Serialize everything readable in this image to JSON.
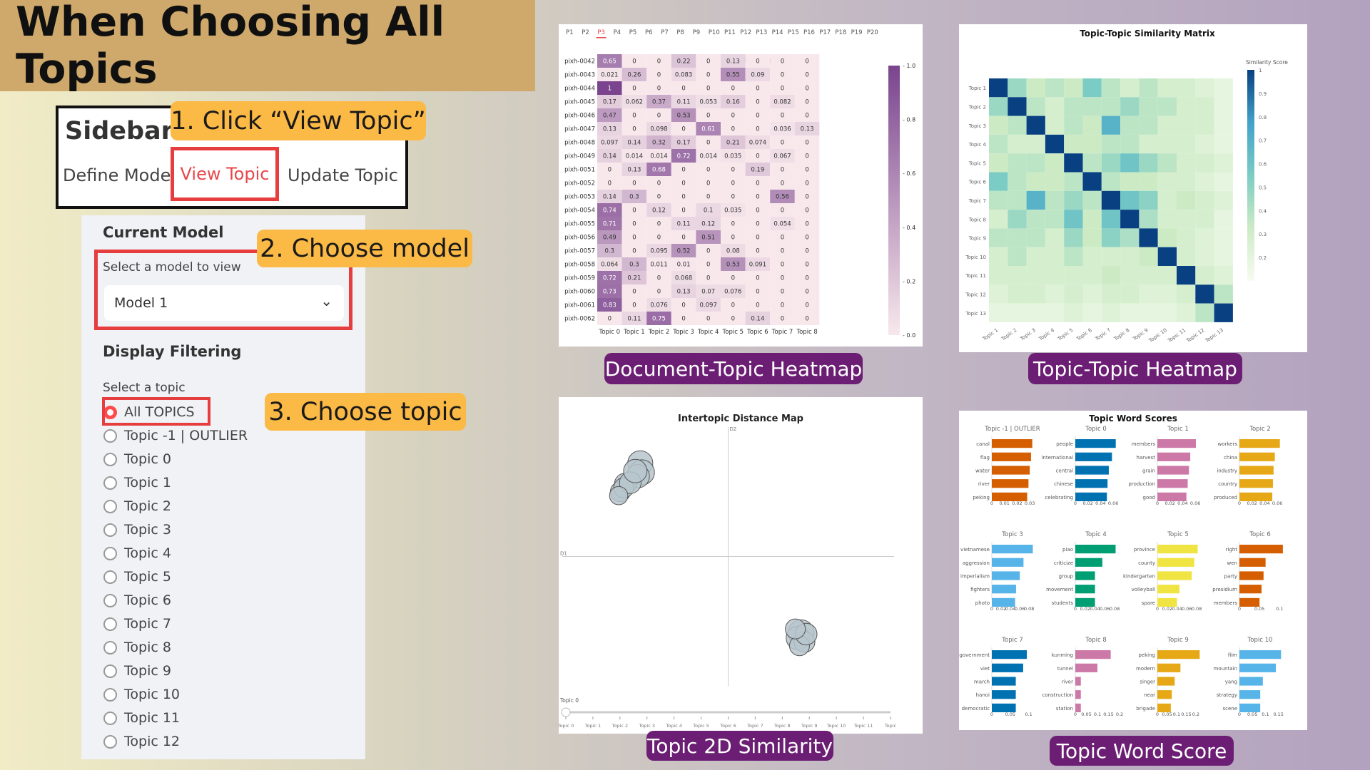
{
  "title": "When Choosing All Topics",
  "sidebar": {
    "heading": "Sidebar",
    "tabs": [
      "Define Model",
      "View Topic",
      "Update Topic"
    ]
  },
  "callouts": [
    "1. Click “View Topic”",
    "2. Choose model",
    "3. Choose topic"
  ],
  "panel": {
    "current_model_heading": "Current Model",
    "select_model_label": "Select a model to view",
    "selected_model": "Model 1",
    "display_filtering_heading": "Display Filtering",
    "select_topic_label": "Select a topic",
    "topic_options": [
      "All TOPICS",
      "Topic -1 | OUTLIER",
      "Topic 0",
      "Topic 1",
      "Topic 2",
      "Topic 3",
      "Topic 4",
      "Topic 5",
      "Topic 6",
      "Topic 7",
      "Topic 8",
      "Topic 9",
      "Topic 10",
      "Topic 11",
      "Topic 12"
    ],
    "selected_topic_index": 0
  },
  "colors": {
    "banner": "#cfa96b",
    "callout": "#fbb945",
    "caption": "#6b1e73",
    "highlight": "#e63e3e"
  },
  "captions": [
    "Document-Topic Heatmap",
    "Topic-Topic Heatmap",
    "Topic 2D Similarity",
    "Topic Word Score"
  ],
  "chart_data": [
    {
      "type": "heatmap",
      "title": "Document-Topic Heatmap All",
      "page_tabs": [
        "P1",
        "P2",
        "P3",
        "P4",
        "P5",
        "P6",
        "P7",
        "P8",
        "P9",
        "P10",
        "P11",
        "P12",
        "P13",
        "P14",
        "P15",
        "P16",
        "P17",
        "P18",
        "P19",
        "P20"
      ],
      "active_page": "P3",
      "rows": [
        "pixh-0042",
        "pixh-0043",
        "pixh-0044",
        "pixh-0045",
        "pixh-0046",
        "pixh-0047",
        "pixh-0048",
        "pixh-0049",
        "pixh-0051",
        "pixh-0052",
        "pixh-0053",
        "pixh-0054",
        "pixh-0055",
        "pixh-0056",
        "pixh-0057",
        "pixh-0058",
        "pixh-0059",
        "pixh-0060",
        "pixh-0061",
        "pixh-0062"
      ],
      "columns": [
        "Topic 0",
        "Topic 1",
        "Topic 2",
        "Topic 3",
        "Topic 4",
        "Topic 5",
        "Topic 6",
        "Topic 7",
        "Topic 8"
      ],
      "values": [
        [
          0.65,
          0,
          0,
          0.22,
          0,
          0.13,
          0,
          0,
          0
        ],
        [
          0.021,
          0.26,
          0,
          0.083,
          0,
          0.55,
          0.09,
          0,
          0
        ],
        [
          1,
          0,
          0,
          0,
          0,
          0,
          0,
          0,
          0
        ],
        [
          0.17,
          0.062,
          0.37,
          0.11,
          0.053,
          0.16,
          0,
          0.082,
          0
        ],
        [
          0.47,
          0,
          0,
          0.53,
          0,
          0,
          0,
          0,
          0
        ],
        [
          0.13,
          0,
          0.098,
          0,
          0.61,
          0,
          0,
          0.036,
          0.13
        ],
        [
          0.097,
          0.14,
          0.32,
          0.17,
          0,
          0.21,
          0.074,
          0,
          0
        ],
        [
          0.14,
          0.014,
          0.014,
          0.72,
          0.014,
          0.035,
          0,
          0.067,
          0
        ],
        [
          0,
          0.13,
          0.68,
          0,
          0,
          0,
          0.19,
          0,
          0
        ],
        [
          0,
          0,
          0,
          0,
          0,
          0,
          0,
          0,
          0
        ],
        [
          0.14,
          0.3,
          0,
          0,
          0,
          0,
          0,
          0.56,
          0
        ],
        [
          0.74,
          0,
          0.12,
          0,
          0.1,
          0.035,
          0,
          0,
          0
        ],
        [
          0.71,
          0,
          0,
          0.11,
          0.12,
          0,
          0,
          0.054,
          0
        ],
        [
          0.49,
          0,
          0,
          0,
          0.51,
          0,
          0,
          0,
          0
        ],
        [
          0.3,
          0,
          0.095,
          0.52,
          0,
          0.08,
          0,
          0,
          0
        ],
        [
          0.064,
          0.3,
          0.011,
          0.01,
          0,
          0.53,
          0.091,
          0,
          0
        ],
        [
          0.72,
          0.21,
          0,
          0.068,
          0,
          0,
          0,
          0,
          0
        ],
        [
          0.73,
          0,
          0,
          0.13,
          0.07,
          0.076,
          0,
          0,
          0
        ],
        [
          0.83,
          0,
          0.076,
          0,
          0.097,
          0,
          0,
          0,
          0
        ],
        [
          0,
          0.11,
          0.75,
          0,
          0,
          0,
          0.14,
          0,
          0
        ]
      ],
      "colorbar_ticks": [
        "1.0",
        "0.8",
        "0.6",
        "0.4",
        "0.2",
        "0.0"
      ],
      "colorbar_range": [
        0,
        1
      ]
    },
    {
      "type": "heatmap",
      "title": "Topic-Topic Similarity Matrix",
      "colorbar_title": "Similarity Score",
      "topics": [
        "Topic 1",
        "Topic 2",
        "Topic 3",
        "Topic 4",
        "Topic 5",
        "Topic 6",
        "Topic 7",
        "Topic 8",
        "Topic 9",
        "Topic 10",
        "Topic 11",
        "Topic 12",
        "Topic 13"
      ],
      "values": [
        [
          1,
          0.4,
          0.25,
          0.3,
          0.25,
          0.5,
          0.3,
          0.2,
          0.3,
          0.2,
          0.2,
          0.15,
          0.1
        ],
        [
          0.4,
          1,
          0.3,
          0.2,
          0.3,
          0.3,
          0.3,
          0.4,
          0.3,
          0.3,
          0.2,
          0.2,
          0.1
        ],
        [
          0.25,
          0.3,
          1,
          0.2,
          0.3,
          0.25,
          0.65,
          0.3,
          0.3,
          0.2,
          0.2,
          0.2,
          0.1
        ],
        [
          0.3,
          0.2,
          0.2,
          1,
          0.25,
          0.25,
          0.3,
          0.3,
          0.2,
          0.2,
          0.2,
          0.15,
          0.1
        ],
        [
          0.25,
          0.3,
          0.3,
          0.25,
          1,
          0.3,
          0.4,
          0.55,
          0.4,
          0.3,
          0.2,
          0.2,
          0.15
        ],
        [
          0.5,
          0.3,
          0.25,
          0.25,
          0.3,
          1,
          0.3,
          0.25,
          0.25,
          0.2,
          0.2,
          0.15,
          0.1
        ],
        [
          0.3,
          0.3,
          0.65,
          0.3,
          0.4,
          0.3,
          1,
          0.55,
          0.45,
          0.2,
          0.25,
          0.2,
          0.15
        ],
        [
          0.2,
          0.4,
          0.3,
          0.3,
          0.55,
          0.25,
          0.55,
          1,
          0.35,
          0.2,
          0.2,
          0.2,
          0.1
        ],
        [
          0.3,
          0.3,
          0.3,
          0.2,
          0.4,
          0.25,
          0.45,
          0.35,
          1,
          0.25,
          0.2,
          0.15,
          0.1
        ],
        [
          0.2,
          0.3,
          0.2,
          0.2,
          0.3,
          0.2,
          0.2,
          0.2,
          0.25,
          1,
          0.2,
          0.15,
          0.1
        ],
        [
          0.2,
          0.2,
          0.2,
          0.2,
          0.2,
          0.2,
          0.25,
          0.2,
          0.2,
          0.2,
          1,
          0.2,
          0.15
        ],
        [
          0.15,
          0.2,
          0.2,
          0.15,
          0.2,
          0.15,
          0.2,
          0.2,
          0.15,
          0.15,
          0.2,
          1,
          0.3
        ],
        [
          0.1,
          0.1,
          0.1,
          0.1,
          0.15,
          0.1,
          0.15,
          0.1,
          0.1,
          0.1,
          0.15,
          0.3,
          1
        ]
      ],
      "colorbar_ticks": [
        "1",
        "0.9",
        "0.8",
        "0.7",
        "0.6",
        "0.5",
        "0.4",
        "0.3",
        "0.2"
      ]
    },
    {
      "type": "scatter",
      "title": "Intertopic Distance Map",
      "xlabel": "D1",
      "ylabel": "D2",
      "points": [
        {
          "x": -5.3,
          "y": 7.2,
          "size": 0.8
        },
        {
          "x": -5.2,
          "y": 6.5,
          "size": 0.8
        },
        {
          "x": -5.45,
          "y": 6.2,
          "size": 0.7
        },
        {
          "x": -6.2,
          "y": 5.6,
          "size": 0.6
        },
        {
          "x": -6.5,
          "y": 5.0,
          "size": 0.5
        },
        {
          "x": -6.3,
          "y": 5.3,
          "size": 0.5
        },
        {
          "x": -5.9,
          "y": 5.7,
          "size": 0.6
        },
        {
          "x": -6.6,
          "y": 4.7,
          "size": 0.4
        },
        {
          "x": -5.6,
          "y": 6.6,
          "size": 0.7
        },
        {
          "x": 4.4,
          "y": -5.9,
          "size": 0.85
        },
        {
          "x": 4.2,
          "y": -6.3,
          "size": 0.7
        },
        {
          "x": 4.6,
          "y": -6.6,
          "size": 0.55
        },
        {
          "x": 4.3,
          "y": -6.9,
          "size": 0.5
        },
        {
          "x": 4.7,
          "y": -6.0,
          "size": 0.6
        },
        {
          "x": 4.05,
          "y": -5.6,
          "size": 0.5
        }
      ],
      "xlim": [
        -10,
        10
      ],
      "ylim": [
        -10,
        10
      ],
      "slider_label": "Topic 0",
      "slider_ticks": [
        "Topic 0",
        "Topic 1",
        "Topic 2",
        "Topic 3",
        "Topic 4",
        "Topic 5",
        "Topic 6",
        "Topic 7",
        "Topic 8",
        "Topic 9",
        "Topic 10",
        "Topic 11",
        "Topic"
      ]
    },
    {
      "type": "bar",
      "title": "Topic Word Scores",
      "panels": [
        {
          "title": "Topic -1 | OUTLIER",
          "color": "#d55e00",
          "words": [
            "canal",
            "flag",
            "water",
            "river",
            "peking"
          ],
          "values": [
            0.032,
            0.031,
            0.03,
            0.029,
            0.028
          ],
          "ticks": [
            "0",
            "0.01",
            "0.02",
            "0.03"
          ],
          "xmax": 0.035
        },
        {
          "title": "Topic 0",
          "color": "#0072b2",
          "words": [
            "people",
            "international",
            "central",
            "chinese",
            "celebrating"
          ],
          "values": [
            0.064,
            0.058,
            0.053,
            0.051,
            0.05
          ],
          "ticks": [
            "0",
            "0.02",
            "0.04",
            "0.06"
          ],
          "xmax": 0.07
        },
        {
          "title": "Topic 1",
          "color": "#cc79a7",
          "words": [
            "members",
            "harvest",
            "grain",
            "production",
            "good"
          ],
          "values": [
            0.061,
            0.052,
            0.05,
            0.048,
            0.046
          ],
          "ticks": [
            "0",
            "0.02",
            "0.04",
            "0.06"
          ],
          "xmax": 0.07
        },
        {
          "title": "Topic 2",
          "color": "#e6a817",
          "words": [
            "workers",
            "china",
            "industry",
            "country",
            "produced"
          ],
          "values": [
            0.064,
            0.056,
            0.054,
            0.053,
            0.052
          ],
          "ticks": [
            "0",
            "0.02",
            "0.04",
            "0.06"
          ],
          "xmax": 0.07
        },
        {
          "title": "Topic 3",
          "color": "#56b4e9",
          "words": [
            "vietnamese",
            "aggression",
            "imperialism",
            "fighters",
            "photo"
          ],
          "values": [
            0.088,
            0.068,
            0.06,
            0.052,
            0.05
          ],
          "ticks": [
            "0",
            "0.02",
            "0.04",
            "0.06",
            "0.08"
          ],
          "xmax": 0.095
        },
        {
          "title": "Topic 4",
          "color": "#009e73",
          "words": [
            "piao",
            "criticize",
            "group",
            "movement",
            "students"
          ],
          "values": [
            0.082,
            0.055,
            0.04,
            0.04,
            0.04
          ],
          "ticks": [
            "0",
            "0.02",
            "0.04",
            "0.06",
            "0.08"
          ],
          "xmax": 0.09
        },
        {
          "title": "Topic 5",
          "color": "#f0e442",
          "words": [
            "province",
            "county",
            "kindergarten",
            "volleyball",
            "spare"
          ],
          "values": [
            0.082,
            0.075,
            0.07,
            0.045,
            0.04
          ],
          "ticks": [
            "0",
            "0.02",
            "0.04",
            "0.06",
            "0.08"
          ],
          "xmax": 0.09
        },
        {
          "title": "Topic 6",
          "color": "#d55e00",
          "words": [
            "right",
            "wen",
            "party",
            "presidium",
            "members"
          ],
          "values": [
            0.108,
            0.065,
            0.06,
            0.055,
            0.05
          ],
          "ticks": [
            "0",
            "0.05",
            "0.1"
          ],
          "xmax": 0.11
        },
        {
          "title": "Topic 7",
          "color": "#0072b2",
          "words": [
            "government",
            "viet",
            "march",
            "hanoi",
            "democratic"
          ],
          "values": [
            0.095,
            0.085,
            0.065,
            0.065,
            0.065
          ],
          "ticks": [
            "0",
            "0.05",
            "0.1"
          ],
          "xmax": 0.12
        },
        {
          "title": "Topic 8",
          "color": "#cc79a7",
          "words": [
            "kunming",
            "tunnel",
            "river",
            "construction",
            "station"
          ],
          "values": [
            0.16,
            0.1,
            0.025,
            0.025,
            0.025
          ],
          "ticks": [
            "0",
            "0.05",
            "0.1",
            "0.15",
            "0.2"
          ],
          "xmax": 0.2
        },
        {
          "title": "Topic 9",
          "color": "#e6a817",
          "words": [
            "peking",
            "modern",
            "singer",
            "near",
            "brigade"
          ],
          "values": [
            0.22,
            0.12,
            0.09,
            0.075,
            0.07
          ],
          "ticks": [
            "0",
            "0.05",
            "0.1",
            "0.15",
            "0.2"
          ],
          "xmax": 0.23
        },
        {
          "title": "Topic 10",
          "color": "#56b4e9",
          "words": [
            "film",
            "mountain",
            "yang",
            "strategy",
            "scene"
          ],
          "values": [
            0.16,
            0.14,
            0.09,
            0.08,
            0.08
          ],
          "ticks": [
            "0",
            "0.05",
            "0.1",
            "0.15"
          ],
          "xmax": 0.17
        }
      ]
    }
  ]
}
